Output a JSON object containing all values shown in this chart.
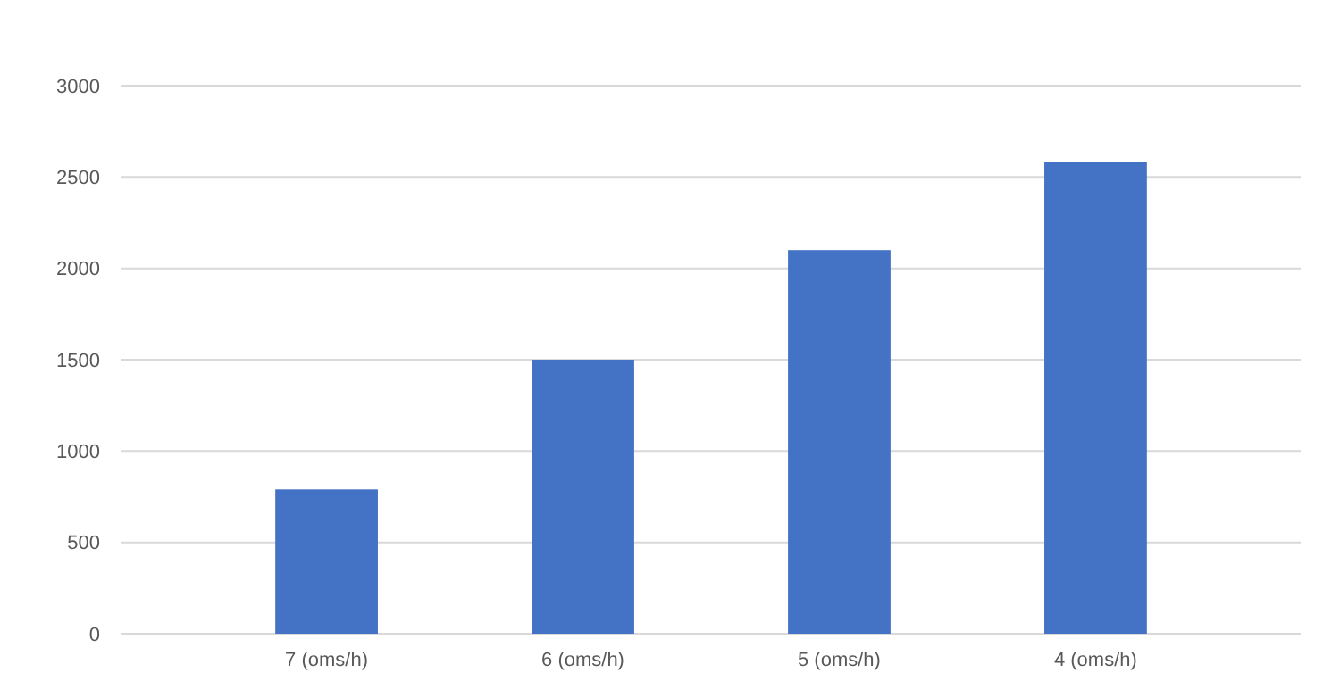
{
  "chart_data": {
    "type": "bar",
    "categories": [
      "7 (oms/h)",
      "6 (oms/h)",
      "5 (oms/h)",
      "4 (oms/h)"
    ],
    "values": [
      790,
      1500,
      2100,
      2580
    ],
    "color": "#4472c4",
    "ylim": [
      0,
      3000
    ],
    "yticks": [
      0,
      500,
      1000,
      1500,
      2000,
      2500,
      3000
    ],
    "grid": "y"
  }
}
